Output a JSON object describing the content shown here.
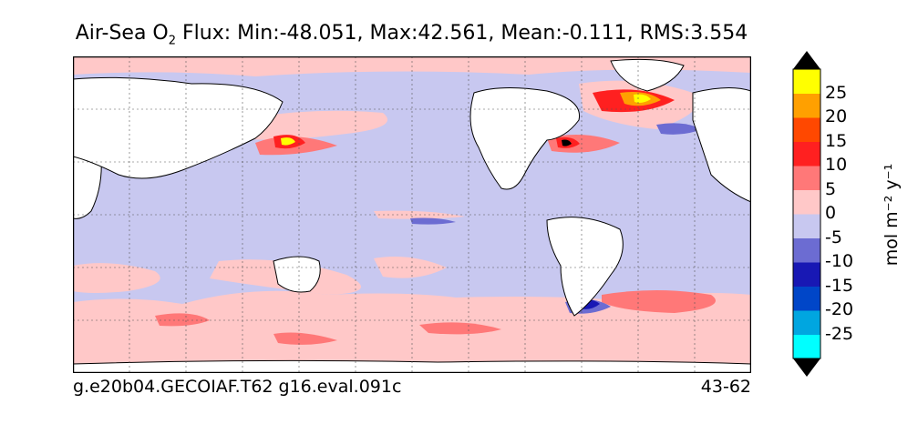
{
  "title": {
    "prefix": "Air-Sea O",
    "subscript": "2",
    "suffix": " Flux: Min:-48.051, Max:42.561, Mean:-0.111, RMS:3.554"
  },
  "footer": {
    "left": "g.e20b04.GECOIAF.T62 g16.eval.091c",
    "right": "43-62"
  },
  "colorbar": {
    "label": "mol m⁻² y⁻¹",
    "ticks": [
      "25",
      "20",
      "15",
      "10",
      "5",
      "0",
      "-5",
      "-10",
      "-15",
      "-20",
      "-25"
    ],
    "colors": [
      "#00ffff",
      "#00a6e0",
      "#0046c8",
      "#1818b4",
      "#6c6cd2",
      "#c8c8f0",
      "#ffc8c8",
      "#ff7878",
      "#ff2020",
      "#ff4800",
      "#ffa000",
      "#ffff00"
    ],
    "extend_low": "#000000",
    "extend_high": "#000000"
  },
  "map": {
    "background_color": "#c8c8f0",
    "land_color": "#ffffff",
    "grid": true,
    "projection": "cylindrical"
  }
}
